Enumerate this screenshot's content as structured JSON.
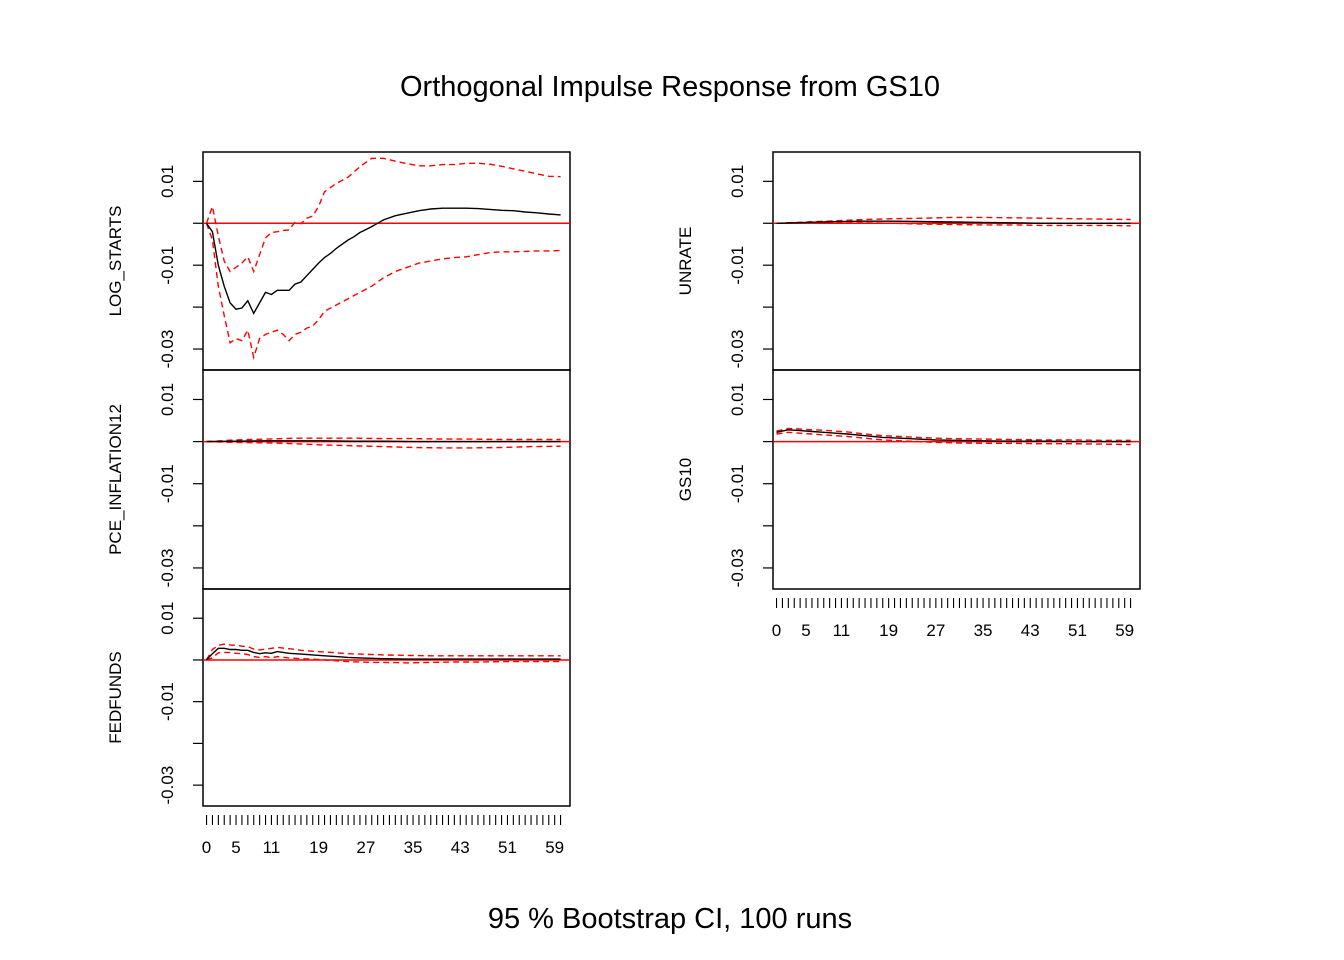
{
  "title": "Orthogonal Impulse Response from GS10",
  "subtitle": "95 % Bootstrap CI,  100 runs",
  "colors": {
    "response": "#000000",
    "ci": "#ff0000",
    "zero": "#ff0000"
  },
  "chart_data": {
    "type": "line",
    "x": [
      0,
      1,
      2,
      3,
      4,
      5,
      6,
      7,
      8,
      9,
      10,
      11,
      12,
      13,
      14,
      15,
      16,
      17,
      18,
      19,
      20,
      21,
      22,
      23,
      24,
      25,
      26,
      27,
      28,
      29,
      30,
      31,
      32,
      33,
      34,
      35,
      36,
      37,
      38,
      39,
      40,
      41,
      42,
      43,
      44,
      45,
      46,
      47,
      48,
      49,
      50,
      51,
      52,
      53,
      54,
      55,
      56,
      57,
      58,
      59,
      60
    ],
    "x_tick_labels": [
      "0",
      "5",
      "11",
      "19",
      "27",
      "35",
      "43",
      "51",
      "59"
    ],
    "x_tick_values": [
      0,
      5,
      11,
      19,
      27,
      35,
      43,
      51,
      59
    ],
    "ylim": [
      -0.035,
      0.017
    ],
    "y_ticks": [
      0.01,
      -0.01,
      -0.03
    ],
    "y_tick_labels": [
      "0.01",
      "-0.01",
      "-0.03"
    ],
    "panels": [
      {
        "name": "LOG_STARTS",
        "response": {
          "x": [
            0,
            1,
            2,
            3,
            4,
            5,
            6,
            7,
            8,
            9,
            10,
            11,
            12,
            13,
            14,
            15,
            16,
            17,
            18,
            19,
            20,
            21,
            22,
            23,
            24,
            25,
            26,
            27,
            28,
            30,
            32,
            34,
            36,
            38,
            40,
            42,
            44,
            46,
            48,
            50,
            52,
            54,
            56,
            58,
            60
          ],
          "y": [
            0,
            -0.002,
            -0.01,
            -0.015,
            -0.019,
            -0.0205,
            -0.0202,
            -0.0185,
            -0.0215,
            -0.019,
            -0.0165,
            -0.017,
            -0.016,
            -0.016,
            -0.016,
            -0.0145,
            -0.014,
            -0.0125,
            -0.011,
            -0.0095,
            -0.0082,
            -0.0072,
            -0.006,
            -0.005,
            -0.004,
            -0.0032,
            -0.0022,
            -0.0015,
            -0.0008,
            0.0008,
            0.0018,
            0.0024,
            0.003,
            0.0034,
            0.0036,
            0.0036,
            0.0036,
            0.0035,
            0.0033,
            0.0031,
            0.003,
            0.0027,
            0.0025,
            0.0022,
            0.002
          ]
        },
        "lower": {
          "x": [
            0,
            1,
            2,
            3,
            4,
            5,
            6,
            7,
            8,
            9,
            10,
            11,
            12,
            13,
            14,
            15,
            16,
            17,
            18,
            19,
            20,
            22,
            24,
            26,
            28,
            30,
            32,
            34,
            36,
            38,
            40,
            42,
            44,
            46,
            48,
            50,
            52,
            54,
            56,
            58,
            60
          ],
          "y": [
            0,
            -0.004,
            -0.015,
            -0.022,
            -0.0285,
            -0.0275,
            -0.028,
            -0.0255,
            -0.032,
            -0.0275,
            -0.0265,
            -0.026,
            -0.0255,
            -0.0265,
            -0.028,
            -0.0265,
            -0.026,
            -0.025,
            -0.0245,
            -0.023,
            -0.021,
            -0.0195,
            -0.018,
            -0.0165,
            -0.015,
            -0.013,
            -0.0115,
            -0.0105,
            -0.0095,
            -0.009,
            -0.0085,
            -0.0082,
            -0.008,
            -0.0075,
            -0.007,
            -0.0068,
            -0.0068,
            -0.0067,
            -0.0066,
            -0.0066,
            -0.0065
          ]
        },
        "upper": {
          "x": [
            0,
            1,
            2,
            3,
            4,
            5,
            6,
            7,
            8,
            9,
            10,
            11,
            12,
            13,
            14,
            15,
            16,
            17,
            18,
            19,
            20,
            22,
            24,
            26,
            28,
            30,
            32,
            34,
            36,
            38,
            40,
            42,
            44,
            46,
            48,
            50,
            52,
            54,
            56,
            58,
            60
          ],
          "y": [
            0,
            0.004,
            -0.003,
            -0.009,
            -0.0115,
            -0.0105,
            -0.0095,
            -0.008,
            -0.0115,
            -0.0075,
            -0.0035,
            -0.0022,
            -0.002,
            -0.0017,
            -0.0016,
            0.0003,
            -0.0001,
            0.0012,
            0.0017,
            0.004,
            0.0075,
            0.0095,
            0.011,
            0.0135,
            0.0155,
            0.0155,
            0.0148,
            0.0142,
            0.0137,
            0.0137,
            0.014,
            0.014,
            0.0143,
            0.0143,
            0.0141,
            0.0136,
            0.013,
            0.0124,
            0.0118,
            0.0112,
            0.0111
          ]
        }
      },
      {
        "name": "PCE_INFLATION12",
        "response": {
          "x": [
            0,
            5,
            10,
            15,
            20,
            25,
            30,
            35,
            40,
            45,
            50,
            55,
            60
          ],
          "y": [
            0,
            0.0001,
            0.0002,
            0.0002,
            0.0002,
            0.0001,
            0.0001,
            0.0,
            0.0,
            0.0,
            0.0,
            0.0,
            0.0
          ]
        },
        "lower": {
          "x": [
            0,
            5,
            10,
            15,
            20,
            25,
            30,
            35,
            40,
            45,
            50,
            55,
            60
          ],
          "y": [
            0,
            -0.0002,
            -0.0003,
            -0.0005,
            -0.0008,
            -0.001,
            -0.0012,
            -0.0014,
            -0.0015,
            -0.0015,
            -0.0014,
            -0.0012,
            -0.0011
          ]
        },
        "upper": {
          "x": [
            0,
            5,
            10,
            15,
            20,
            25,
            30,
            35,
            40,
            45,
            50,
            55,
            60
          ],
          "y": [
            0,
            0.0004,
            0.0006,
            0.0008,
            0.0008,
            0.0008,
            0.0007,
            0.0007,
            0.0006,
            0.0006,
            0.0005,
            0.0005,
            0.0005
          ]
        }
      },
      {
        "name": "FEDFUNDS",
        "response": {
          "x": [
            0,
            1,
            2,
            3,
            4,
            5,
            6,
            7,
            8,
            9,
            10,
            11,
            12,
            14,
            16,
            18,
            20,
            22,
            24,
            26,
            28,
            30,
            34,
            38,
            42,
            46,
            50,
            54,
            58,
            60
          ],
          "y": [
            0,
            0.0015,
            0.0028,
            0.0028,
            0.0025,
            0.0025,
            0.0023,
            0.0023,
            0.0018,
            0.0015,
            0.0017,
            0.0016,
            0.002,
            0.0016,
            0.0014,
            0.0012,
            0.001,
            0.0008,
            0.0006,
            0.0005,
            0.0004,
            0.0003,
            0.0002,
            0.0002,
            0.0002,
            0.0002,
            0.0002,
            0.0002,
            0.0002,
            0.0002
          ]
        },
        "lower": {
          "x": [
            0,
            1,
            2,
            3,
            4,
            5,
            6,
            7,
            8,
            9,
            10,
            11,
            12,
            14,
            16,
            18,
            20,
            22,
            24,
            26,
            28,
            30,
            34,
            38,
            42,
            46,
            50,
            54,
            58,
            60
          ],
          "y": [
            0,
            0.0005,
            0.0017,
            0.0018,
            0.0018,
            0.0016,
            0.0015,
            0.0013,
            0.0008,
            0.0006,
            0.0008,
            0.0005,
            0.0008,
            0.0005,
            0.0003,
            0.0002,
            0.0,
            -0.0002,
            -0.0004,
            -0.0005,
            -0.0006,
            -0.0006,
            -0.0007,
            -0.0006,
            -0.0005,
            -0.0005,
            -0.0004,
            -0.0004,
            -0.0004,
            -0.0004
          ]
        },
        "upper": {
          "x": [
            0,
            1,
            2,
            3,
            4,
            5,
            6,
            7,
            8,
            9,
            10,
            11,
            12,
            14,
            16,
            18,
            20,
            22,
            24,
            26,
            28,
            30,
            34,
            38,
            42,
            46,
            50,
            54,
            58,
            60
          ],
          "y": [
            0,
            0.0025,
            0.0035,
            0.0038,
            0.0036,
            0.0035,
            0.0033,
            0.0032,
            0.0026,
            0.0024,
            0.0026,
            0.0028,
            0.003,
            0.0027,
            0.0023,
            0.0021,
            0.0019,
            0.0017,
            0.0015,
            0.0014,
            0.0013,
            0.0012,
            0.0011,
            0.001,
            0.001,
            0.001,
            0.001,
            0.001,
            0.001,
            0.001
          ]
        }
      },
      {
        "name": "UNRATE",
        "response": {
          "x": [
            0,
            5,
            10,
            15,
            20,
            25,
            30,
            35,
            40,
            45,
            50,
            55,
            60
          ],
          "y": [
            0,
            0.0002,
            0.0004,
            0.0005,
            0.0005,
            0.0004,
            0.0003,
            0.0002,
            0.0001,
            0.0,
            0.0,
            0.0,
            0.0
          ]
        },
        "lower": {
          "x": [
            0,
            5,
            10,
            15,
            20,
            25,
            30,
            35,
            40,
            45,
            50,
            55,
            60
          ],
          "y": [
            0,
            0.0,
            0.0001,
            0.0001,
            0.0,
            -0.0002,
            -0.0003,
            -0.0004,
            -0.0004,
            -0.0005,
            -0.0005,
            -0.0005,
            -0.0006
          ]
        },
        "upper": {
          "x": [
            0,
            5,
            10,
            15,
            20,
            25,
            30,
            35,
            40,
            45,
            50,
            55,
            60
          ],
          "y": [
            0,
            0.0003,
            0.0006,
            0.0009,
            0.0011,
            0.0012,
            0.0014,
            0.0014,
            0.0013,
            0.0012,
            0.0011,
            0.001,
            0.0009
          ]
        }
      },
      {
        "name": "GS10",
        "response": {
          "x": [
            0,
            2,
            4,
            6,
            8,
            10,
            12,
            15,
            18,
            21,
            24,
            27,
            30,
            35,
            40,
            45,
            50,
            55,
            60
          ],
          "y": [
            0.0022,
            0.0028,
            0.0026,
            0.0024,
            0.0022,
            0.002,
            0.0018,
            0.0014,
            0.001,
            0.0008,
            0.0006,
            0.0004,
            0.0003,
            0.0002,
            0.0001,
            0.0001,
            0.0,
            0.0,
            0.0
          ]
        },
        "lower": {
          "x": [
            0,
            2,
            4,
            6,
            8,
            10,
            12,
            15,
            18,
            21,
            24,
            27,
            30,
            35,
            40,
            45,
            50,
            55,
            60
          ],
          "y": [
            0.0018,
            0.0022,
            0.002,
            0.0018,
            0.0016,
            0.0014,
            0.0012,
            0.0008,
            0.0004,
            0.0002,
            0.0,
            -0.0002,
            -0.0003,
            -0.0004,
            -0.0004,
            -0.0005,
            -0.0005,
            -0.0006,
            -0.0007
          ]
        },
        "upper": {
          "x": [
            0,
            2,
            4,
            6,
            8,
            10,
            12,
            15,
            18,
            21,
            24,
            27,
            30,
            35,
            40,
            45,
            50,
            55,
            60
          ],
          "y": [
            0.0025,
            0.0031,
            0.003,
            0.0028,
            0.0027,
            0.0025,
            0.0023,
            0.0018,
            0.0014,
            0.0012,
            0.001,
            0.0008,
            0.0007,
            0.0006,
            0.0005,
            0.0004,
            0.0004,
            0.0003,
            0.0003
          ]
        }
      }
    ]
  }
}
